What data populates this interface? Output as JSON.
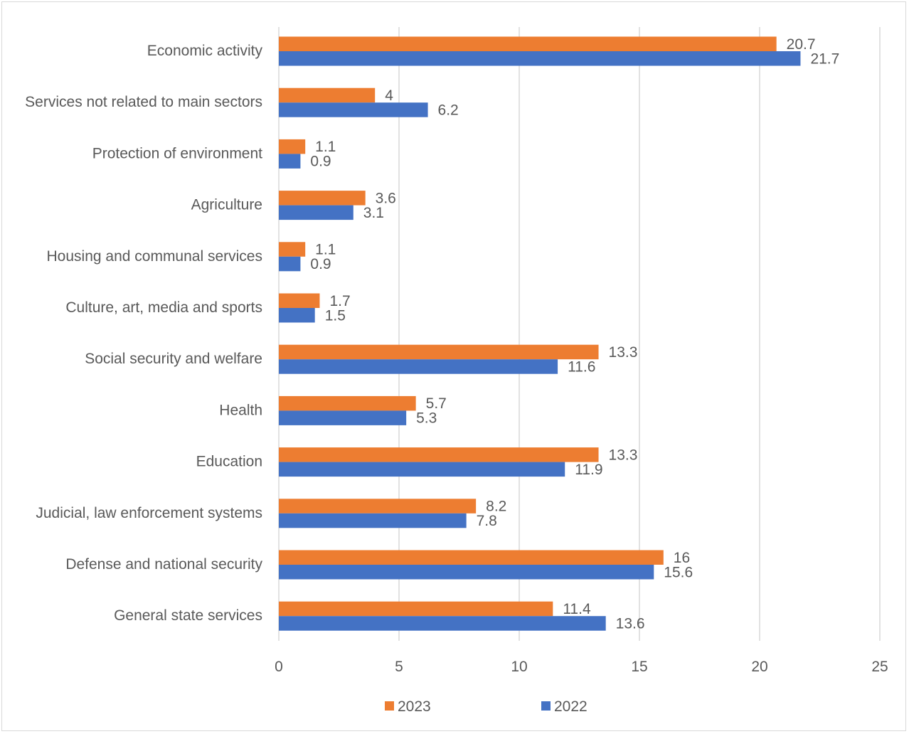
{
  "chart_data": {
    "type": "bar",
    "orientation": "horizontal",
    "categories": [
      "Economic activity",
      "Services not related to main sectors",
      "Protection of environment",
      "Agriculture",
      "Housing and communal services",
      "Culture, art, media and sports",
      "Social security and welfare",
      "Health",
      "Education",
      "Judicial, law enforcement systems",
      "Defense and national security",
      "General state services"
    ],
    "series": [
      {
        "name": "2023",
        "color": "#ed7d31",
        "values": [
          20.7,
          4,
          1.1,
          3.6,
          1.1,
          1.7,
          13.3,
          5.7,
          13.3,
          8.2,
          16,
          11.4
        ]
      },
      {
        "name": "2022",
        "color": "#4472c4",
        "values": [
          21.7,
          6.2,
          0.9,
          3.1,
          0.9,
          1.5,
          11.6,
          5.3,
          11.9,
          7.8,
          15.6,
          13.6
        ]
      }
    ],
    "data_labels": {
      "2023": [
        "20.7",
        "4",
        "1.1",
        "3.6",
        "1.1",
        "1.7",
        "13.3",
        "5.7",
        "13.3",
        "8.2",
        "16",
        "11.4"
      ],
      "2022": [
        "21.7",
        "6.2",
        "0.9",
        "3.1",
        "0.9",
        "1.5",
        "11.6",
        "5.3",
        "11.9",
        "7.8",
        "15.6",
        "13.6"
      ]
    },
    "xticks": [
      "0",
      "5",
      "10",
      "15",
      "20",
      "25"
    ],
    "xlim": [
      0,
      25
    ],
    "grid": true,
    "legend": "bottom-center",
    "title": "",
    "xlabel": "",
    "ylabel": ""
  }
}
